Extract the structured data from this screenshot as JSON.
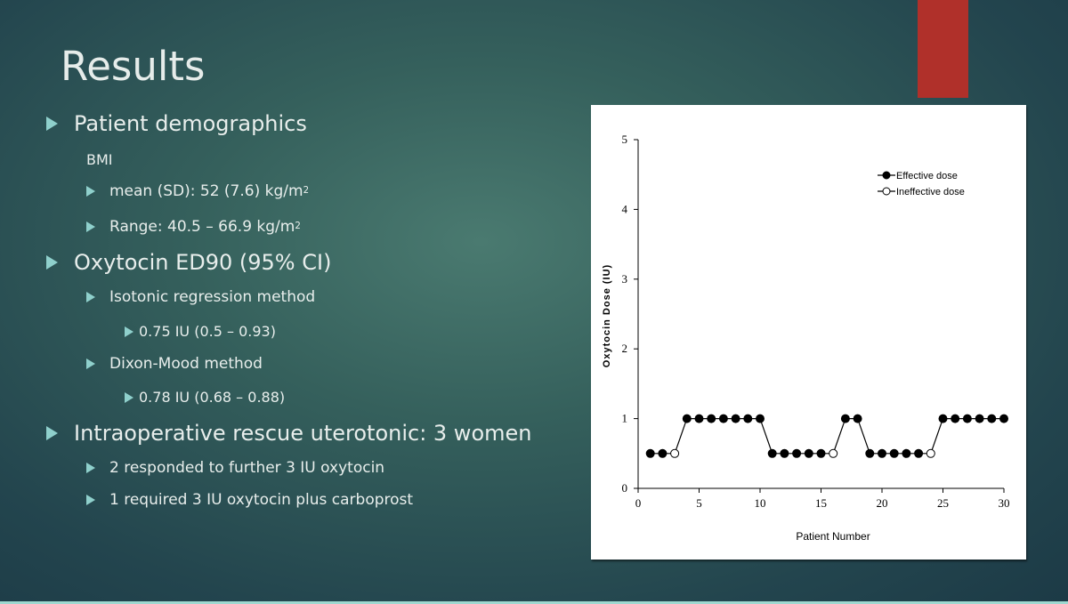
{
  "slide": {
    "title": "Results",
    "bullets": [
      {
        "level": 1,
        "text": "Patient demographics"
      },
      {
        "level": 0,
        "text": "BMI"
      },
      {
        "level": 2,
        "text": "mean (SD): 52 (7.6) kg/m",
        "sup": "2"
      },
      {
        "level": 2,
        "text": "Range: 40.5 – 66.9   kg/m",
        "sup": "2"
      },
      {
        "level": 1,
        "text": "Oxytocin ED90 (95% CI)"
      },
      {
        "level": 2,
        "text": "Isotonic regression method"
      },
      {
        "level": 3,
        "text": "0.75 IU (0.5 – 0.93)"
      },
      {
        "level": 2,
        "text": "Dixon-Mood method"
      },
      {
        "level": 3,
        "text": "0.78 IU (0.68 – 0.88)"
      },
      {
        "level": 1,
        "text": "Intraoperative rescue uterotonic: 3 women"
      },
      {
        "level": 2,
        "text": "2 responded to further 3 IU oxytocin"
      },
      {
        "level": 2,
        "text": "1 required 3 IU oxytocin plus carboprost"
      }
    ],
    "colors": {
      "accent": "#b0302a",
      "bullet": "#8fd0cc",
      "background": "#35605c"
    }
  },
  "chart_data": {
    "type": "line",
    "xlabel": "Patient Number",
    "ylabel": "Oxytocin Dose (IU)",
    "xlim": [
      0,
      30
    ],
    "ylim": [
      0,
      5
    ],
    "xticks": [
      0,
      5,
      10,
      15,
      20,
      25,
      30
    ],
    "yticks": [
      0,
      1,
      2,
      3,
      4,
      5
    ],
    "grid": false,
    "legend_position": "top-right",
    "legend": [
      {
        "name": "Effective dose",
        "marker": "filled-circle"
      },
      {
        "name": "Ineffective dose",
        "marker": "open-circle"
      }
    ],
    "x": [
      1,
      2,
      3,
      4,
      5,
      6,
      7,
      8,
      9,
      10,
      11,
      12,
      13,
      14,
      15,
      16,
      17,
      18,
      19,
      20,
      21,
      22,
      23,
      24,
      25,
      26,
      27,
      28,
      29,
      30
    ],
    "y": [
      0.5,
      0.5,
      0.5,
      1,
      1,
      1,
      1,
      1,
      1,
      1,
      0.5,
      0.5,
      0.5,
      0.5,
      0.5,
      0.5,
      1,
      1,
      0.5,
      0.5,
      0.5,
      0.5,
      0.5,
      0.5,
      1,
      1,
      1,
      1,
      1,
      1
    ],
    "effective": [
      true,
      true,
      false,
      true,
      true,
      true,
      true,
      true,
      true,
      true,
      true,
      true,
      true,
      true,
      true,
      false,
      true,
      true,
      true,
      true,
      true,
      true,
      true,
      false,
      true,
      true,
      true,
      true,
      true,
      true
    ]
  }
}
